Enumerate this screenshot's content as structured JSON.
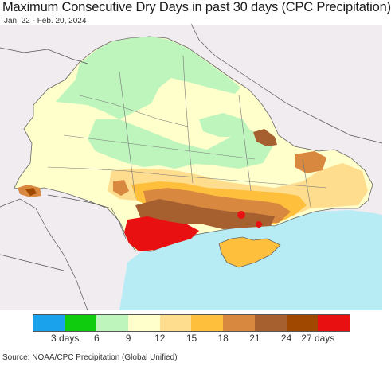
{
  "title": "Maximum Consecutive Dry Days in past 30 days (CPC Precipitation)",
  "subtitle": "Jan. 22 - Feb. 20, 2024",
  "legend": {
    "colors": [
      "#1aa3ec",
      "#0fcc0f",
      "#bdf5bd",
      "#ffffcc",
      "#fedd8e",
      "#fdbf3c",
      "#d98840",
      "#a66030",
      "#a04800",
      "#e81010"
    ],
    "tick_labels": [
      "3 days",
      "6",
      "9",
      "12",
      "15",
      "18",
      "21",
      "24",
      "27 days"
    ]
  },
  "source": "Source: NOAA/CPC Precipitation (Global Unified)"
}
